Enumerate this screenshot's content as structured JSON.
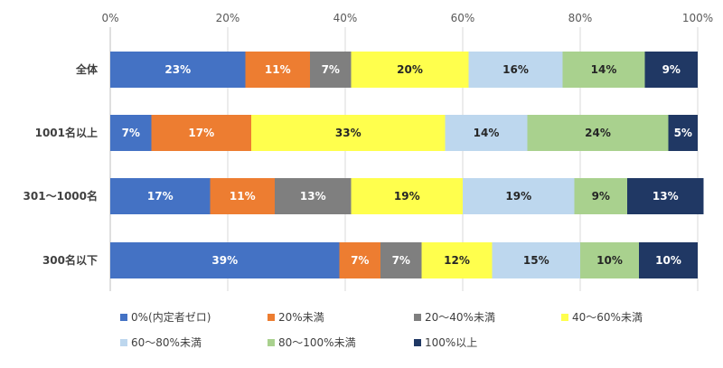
{
  "chart_data": {
    "type": "bar",
    "orientation": "horizontal",
    "stacked": true,
    "percent_stacked": true,
    "xlim": [
      0,
      100
    ],
    "x_ticks": [
      "0%",
      "20%",
      "40%",
      "60%",
      "80%",
      "100%"
    ],
    "grid": true,
    "legend_position": "bottom",
    "categories": [
      "全体",
      "1001名以上",
      "301～1000名",
      "300名以下"
    ],
    "series": [
      {
        "name": "0%(内定者ゼロ)",
        "color": "#4472C4",
        "label_color": "#ffffff",
        "values": [
          23,
          7,
          17,
          39
        ],
        "labels": [
          "23%",
          "7%",
          "17%",
          "39%"
        ]
      },
      {
        "name": "20%未満",
        "color": "#ED7D31",
        "label_color": "#ffffff",
        "values": [
          11,
          17,
          11,
          7
        ],
        "labels": [
          "11%",
          "17%",
          "11%",
          "7%"
        ]
      },
      {
        "name": "20～40%未満",
        "color": "#7F7F7F",
        "label_color": "#ffffff",
        "values": [
          7,
          0,
          13,
          7
        ],
        "labels": [
          "7%",
          "",
          "13%",
          "7%"
        ]
      },
      {
        "name": "40～60%未満",
        "color": "#FFFF4D",
        "label_color": "#262626",
        "values": [
          20,
          33,
          19,
          12
        ],
        "labels": [
          "20%",
          "33%",
          "19%",
          "12%"
        ]
      },
      {
        "name": "60～80%未満",
        "color": "#BDD7EE",
        "label_color": "#262626",
        "values": [
          16,
          14,
          19,
          15
        ],
        "labels": [
          "16%",
          "14%",
          "19%",
          "15%"
        ]
      },
      {
        "name": "80～100%未満",
        "color": "#A9D18E",
        "label_color": "#262626",
        "values": [
          14,
          24,
          9,
          10
        ],
        "labels": [
          "14%",
          "24%",
          "9%",
          "10%"
        ]
      },
      {
        "name": "100%以上",
        "color": "#203864",
        "label_color": "#ffffff",
        "values": [
          9,
          5,
          13,
          10
        ],
        "labels": [
          "9%",
          "5%",
          "13%",
          "10%"
        ]
      }
    ]
  }
}
